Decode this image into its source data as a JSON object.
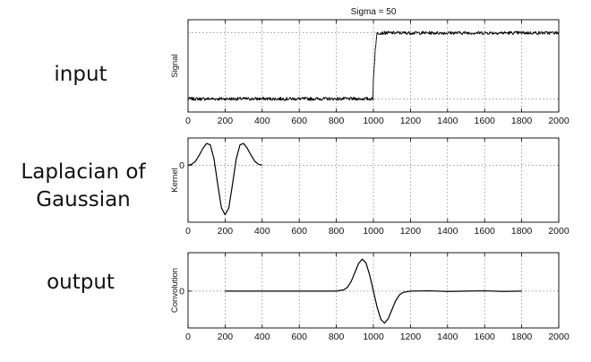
{
  "row_labels": {
    "input": "input",
    "log_line1": "Laplacian of",
    "log_line2": "Gaussian",
    "output": "output"
  },
  "colors": {
    "line": "#000000",
    "grid": "#666666",
    "axes": "#000000"
  },
  "chart_data": [
    {
      "type": "line",
      "title": "Sigma = 50",
      "ylabel": "Signal",
      "xlabel": "",
      "xlim": [
        0,
        2000
      ],
      "ylim": [
        -0.2,
        1.2
      ],
      "x_ticks": [
        0,
        200,
        400,
        600,
        800,
        1000,
        1200,
        1400,
        1600,
        1800,
        2000
      ],
      "y_ticks": [],
      "grid": true,
      "noise": 0.025,
      "series": [
        {
          "x": [
            0,
            999,
            1000,
            1010,
            1020,
            2000
          ],
          "y": [
            0,
            0,
            0.3,
            0.75,
            1,
            1
          ]
        }
      ]
    },
    {
      "type": "line",
      "title": "",
      "ylabel": "Kernel",
      "xlabel": "",
      "xlim": [
        0,
        2000
      ],
      "ylim": [
        -1.15,
        0.55
      ],
      "x_ticks": [
        0,
        200,
        400,
        600,
        800,
        1000,
        1200,
        1400,
        1600,
        1800,
        2000
      ],
      "y_ticks": [
        0
      ],
      "grid": true,
      "series": [
        {
          "x": [
            0,
            20,
            40,
            60,
            80,
            100,
            120,
            140,
            160,
            180,
            200,
            220,
            240,
            260,
            280,
            300,
            320,
            340,
            360,
            380,
            400
          ],
          "y": [
            0.0,
            0.02,
            0.08,
            0.2,
            0.34,
            0.44,
            0.41,
            0.13,
            -0.38,
            -0.86,
            -1.0,
            -0.86,
            -0.38,
            0.13,
            0.41,
            0.44,
            0.34,
            0.2,
            0.08,
            0.02,
            0.0
          ]
        }
      ]
    },
    {
      "type": "line",
      "title": "",
      "ylabel": "Convolution",
      "xlabel": "",
      "xlim": [
        0,
        2000
      ],
      "ylim": [
        -1.15,
        1.2
      ],
      "x_ticks": [
        0,
        200,
        400,
        600,
        800,
        1000,
        1200,
        1400,
        1600,
        1800,
        2000
      ],
      "y_ticks": [
        0
      ],
      "grid": true,
      "series": [
        {
          "x": [
            200,
            800,
            840,
            860,
            880,
            900,
            920,
            940,
            960,
            980,
            1000,
            1020,
            1040,
            1060,
            1080,
            1100,
            1120,
            1140,
            1160,
            1200,
            1300,
            1400,
            1500,
            1600,
            1700,
            1800
          ],
          "y": [
            0.0,
            0.0,
            0.04,
            0.12,
            0.3,
            0.58,
            0.86,
            1.0,
            0.88,
            0.5,
            0.0,
            -0.5,
            -0.88,
            -1.0,
            -0.86,
            -0.58,
            -0.3,
            -0.12,
            -0.04,
            0.0,
            0.01,
            -0.01,
            0.0,
            0.01,
            -0.01,
            0.0
          ]
        }
      ]
    }
  ]
}
